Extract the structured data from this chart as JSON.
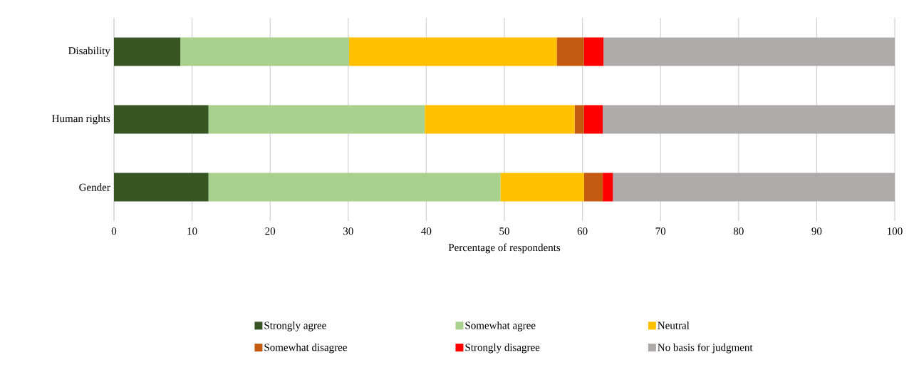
{
  "chart_data": {
    "type": "bar",
    "orientation": "horizontal",
    "stacked": true,
    "categories": [
      "Disability",
      "Human rights",
      "Gender"
    ],
    "series": [
      {
        "name": "Strongly agree",
        "color": "#375623",
        "values": [
          8.5,
          12.1,
          12.1
        ]
      },
      {
        "name": "Somewhat agree",
        "color": "#a9d18e",
        "values": [
          21.6,
          27.7,
          37.4
        ]
      },
      {
        "name": "Neutral",
        "color": "#ffc000",
        "values": [
          26.6,
          19.2,
          10.7
        ]
      },
      {
        "name": "Somewhat disagree",
        "color": "#c55a11",
        "values": [
          3.5,
          1.2,
          2.4
        ]
      },
      {
        "name": "Strongly disagree",
        "color": "#ff0000",
        "values": [
          2.5,
          2.4,
          1.3
        ]
      },
      {
        "name": "No basis for judgment",
        "color": "#aeaaaa",
        "values": [
          37.3,
          37.4,
          36.1
        ]
      }
    ],
    "xlabel": "Percentage of respondents",
    "xlim": [
      0,
      100
    ],
    "xticks": [
      0,
      10,
      20,
      30,
      40,
      50,
      60,
      70,
      80,
      90,
      100
    ],
    "grid": "x",
    "legend": "bottom"
  }
}
